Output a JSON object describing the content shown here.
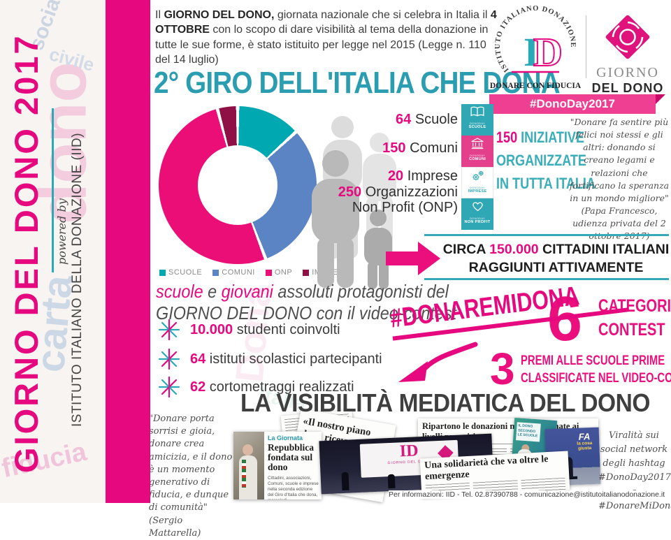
{
  "sidebar": {
    "title": "GIORNO DEL DONO 2017",
    "powered_by": "powered by",
    "org": "ISTITUTO ITALIANO DELLA DONAZIONE (IID)",
    "faded_words": [
      "dono",
      "sociale",
      "civile",
      "carta",
      "fiducia"
    ]
  },
  "intro": {
    "t1": "Il ",
    "b1": "GIORNO DEL DONO,",
    "t2": " giornata nazionale che si celebra in Italia il ",
    "b2": "4 OTTOBRE",
    "t3": " con lo scopo di dare visibilità al tema della donazione in tutte le sue forme, è stato istituito per legge nel 2015 (Legge n. 110 del 14 luglio)"
  },
  "main_title": "2° GIRO DELL'ITALIA CHE DONA",
  "logos": {
    "iid_circular": "ISTITUTO ITALIANO DONAZIONE",
    "iid_letter_i": "I",
    "iid_letter_d": "D",
    "iid_tagline": "DONARE CON FIDUCIA",
    "gdd_line1": "GIORNO",
    "gdd_line2": "DEL DONO",
    "ribbon": "#DonoDay2017"
  },
  "chart_data": {
    "type": "pie",
    "donut": true,
    "categories": [
      "SCUOLE",
      "COMUNI",
      "ONP",
      "IMPRESE"
    ],
    "values": [
      64,
      150,
      250,
      20
    ],
    "colors": [
      "#00a8b2",
      "#5b84c4",
      "#ec0e77",
      "#8e1045"
    ],
    "title": "",
    "legend_position": "bottom"
  },
  "stats": [
    {
      "value": "64",
      "label": " Scuole"
    },
    {
      "value": "150",
      "label": " Comuni"
    },
    {
      "value": "20",
      "label": " Imprese"
    },
    {
      "value": "250",
      "label": " Organizzazioni Non Profit (ONP)"
    }
  ],
  "tiles": [
    {
      "brand": "DONODAY",
      "label": "SCUOLE"
    },
    {
      "brand": "DONODAY",
      "label": "COMUNI"
    },
    {
      "brand": "DONODAY",
      "label": "IMPRESE"
    },
    {
      "brand": "DONODAY",
      "label": "NON PROFIT"
    }
  ],
  "iniziative": {
    "num": "150",
    "rest": " INIZIATIVE",
    "line2": "ORGANIZZATE",
    "line3": "IN TUTTA ITALIA"
  },
  "papa_quote": {
    "text": "\"Donare fa sentire più felici noi stessi e gli altri: donando si creano legami e relazioni che fortificano la speranza in un mondo migliore\"",
    "attribution": "(Papa Francesco, udienza privata del 2 ottobre 2017)"
  },
  "circa": {
    "pre": "CIRCA ",
    "num": "150.000",
    "post": " CITTADINI ITALIANI",
    "line2": "RAGGIUNTI ATTIVAMENTE"
  },
  "protagonisti": {
    "pink1": "scuole",
    "mid": " e ",
    "pink2": "giovani",
    "rest": " assoluti protagonisti del",
    "line2a": "GIORNO DEL DONO",
    "line2b": " con il video-contest"
  },
  "bullets": [
    {
      "num": "10.000",
      "text": " studenti coinvolti"
    },
    {
      "num": "64",
      "text": " istituti scolastici partecipanti"
    },
    {
      "num": "62",
      "text": " cortometraggi realizzati"
    }
  ],
  "hashtag_banner": "#DONAREMIDONA",
  "contest": {
    "num6": "6",
    "cat1": "CATEGORIE",
    "cat2": "CONTEST",
    "num3": "3",
    "premi1": "PREMI ALLE SCUOLE PRIME",
    "premi2": "CLASSIFICATE NEL VIDEO-CONTEST"
  },
  "media_title": "LA VISIBILITÀ MEDIATICA DEL DONO",
  "mattarella_quote": {
    "text": "\"Donare porta sorrisi e gioia, donare crea amicizia, e il dono è un momento generativo di fiducia, e dunque di comunità\"",
    "attribution": "(Sergio Mattarella)"
  },
  "collage": {
    "giornata_kicker": "La Giornata",
    "giornata_headline": "Repubblica fondata sul dono",
    "giornata_body": "Cittadini, associazioni, Comuni, scuole e imprese nella seconda edizione del Giro d'Italia che dona, mercoledì.",
    "piano_quote": "«Il nostro piano dono ricevuto da con…",
    "ripartono_headline": "Ripartono le donazioni nel 2016 tornate ai livelli pre crisi",
    "solidarieta_headline": "Una solidarietà che va oltre le emergenze",
    "tv1_letters": "ID",
    "tv1_sub": "GIORNO DEL DONO",
    "tv2_box": "IL DONO SECONDO LE SCUOLE",
    "tv3_line1": "FA",
    "tv3_line2": "la cosa giusta"
  },
  "social_note": "Viralità sui social network degli hashtag #DonoDay2017 e #DonareMiDona",
  "footer": "Per informazioni: IID - Tel. 02.87390788 - comunicazione@istitutoitalianodonazione.it",
  "colors": {
    "pink": "#e5087e",
    "teal": "#2aa9b8",
    "blue": "#5b84c4",
    "maroon": "#8e1045",
    "ribbon": "#ef3f92"
  }
}
